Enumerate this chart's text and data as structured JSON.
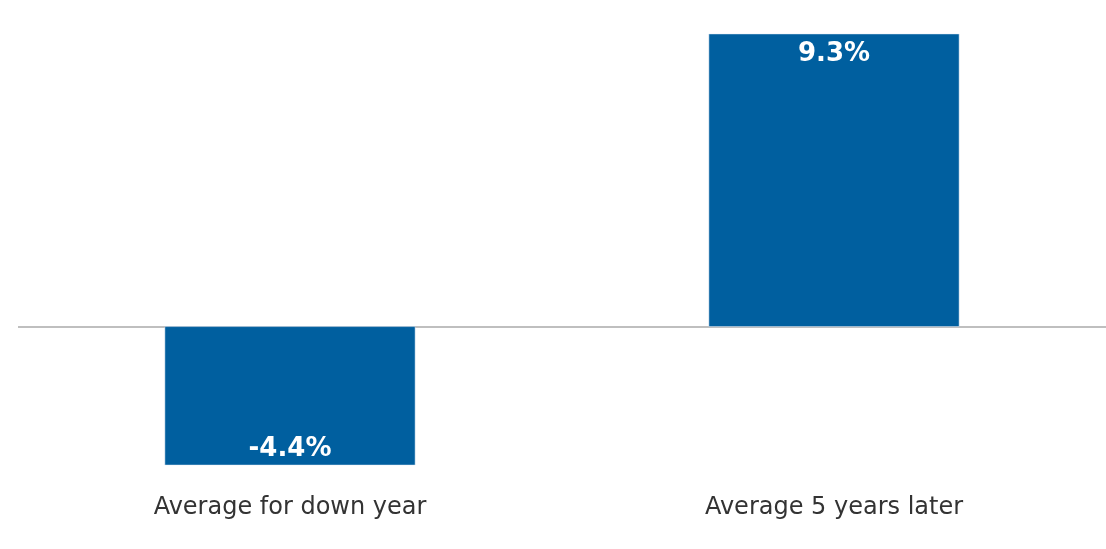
{
  "chart_data": {
    "type": "bar",
    "categories": [
      "Average for down year",
      "Average 5 years later"
    ],
    "values": [
      -4.4,
      9.3
    ],
    "color": "#005f9f",
    "value_labels": [
      "-4.4%",
      "9.3%"
    ]
  }
}
